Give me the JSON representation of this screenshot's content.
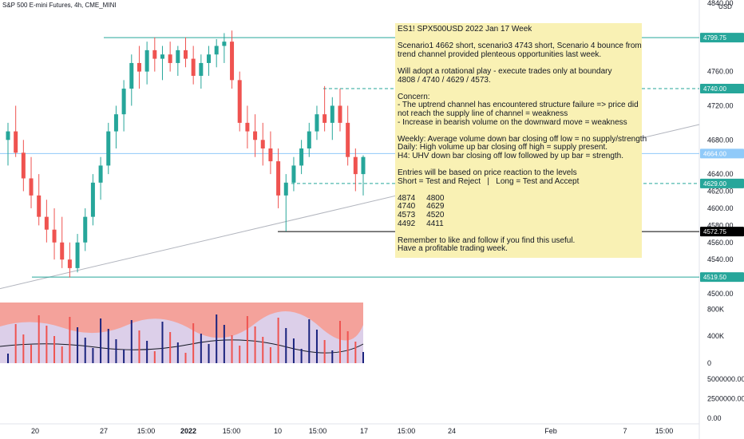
{
  "header": {
    "title": "S&P 500 E-mini Futures, 4h, CME_MINI"
  },
  "currency": "USD",
  "note": {
    "lines": [
      "ES1! SPX500USD 2022 Jan 17 Week",
      "",
      "Scenario1 4662 short, scenario3 4743 short, Scenario 4 bounce from",
      "trend channel provided plenteous opportunities last week.",
      "",
      "Will adopt a rotational play - execute trades only at boundary",
      "4808 / 4740 / 4629 / 4573.",
      "",
      "Concern:",
      "- The uptrend channel has encountered structure failure => price did",
      "not reach the supply line of channel = weakness",
      "- Increase in bearish volume on the downward move = weakness",
      "",
      "Weekly: Average volume down bar closing off low = no supply/strength",
      "Daily: High volume up bar closing off high = supply present.",
      "H4: UHV down bar closing off low followed by up bar = strength.",
      "",
      "Entries will be based on price reaction to the levels",
      "Short = Test and Reject   |   Long = Test and Accept",
      "",
      "4874     4800",
      "4740     4629",
      "4573     4520",
      "4492     4411",
      "",
      "Remember to like and follow if you find this useful.",
      "Have a profitable trading week."
    ]
  },
  "chart_data": {
    "type": "candlestick",
    "title": "S&P 500 E-mini Futures, 4h, CME_MINI",
    "price_axis": {
      "min": 4500,
      "max": 4840,
      "ticks": [
        4840,
        4760,
        4720,
        4680,
        4640,
        4620,
        4600,
        4580,
        4560,
        4540,
        4500
      ]
    },
    "price_tick_labels": [
      "4840.00",
      "4760.00",
      "4720.00",
      "4680.00",
      "4640.00",
      "4620.00",
      "4600.00",
      "4580.00",
      "4560.00",
      "4540.00",
      "4500.00"
    ],
    "levels": [
      {
        "value": 4799.75,
        "label": "4799.75",
        "style": "solid",
        "color": "#26a69a"
      },
      {
        "value": 4740.0,
        "label": "4740.00",
        "style": "dashed",
        "color": "#26a69a"
      },
      {
        "value": 4664.0,
        "label": "4664.00",
        "style": "solid",
        "color": "#90caf9"
      },
      {
        "value": 4629.0,
        "label": "4629.00",
        "style": "dashed",
        "color": "#26a69a"
      },
      {
        "value": 4572.75,
        "label": "4572.75",
        "style": "solid",
        "color": "#000000"
      },
      {
        "value": 4519.5,
        "label": "4519.50",
        "style": "solid",
        "color": "#26a69a"
      }
    ],
    "candles": [
      [
        4680,
        4700,
        4650,
        4690
      ],
      [
        4690,
        4720,
        4660,
        4665
      ],
      [
        4665,
        4680,
        4620,
        4635
      ],
      [
        4635,
        4660,
        4600,
        4615
      ],
      [
        4615,
        4640,
        4580,
        4590
      ],
      [
        4590,
        4610,
        4560,
        4575
      ],
      [
        4575,
        4600,
        4540,
        4560
      ],
      [
        4560,
        4590,
        4530,
        4540
      ],
      [
        4540,
        4560,
        4519,
        4530
      ],
      [
        4530,
        4570,
        4525,
        4560
      ],
      [
        4560,
        4600,
        4550,
        4590
      ],
      [
        4590,
        4640,
        4580,
        4630
      ],
      [
        4630,
        4660,
        4610,
        4650
      ],
      [
        4650,
        4700,
        4640,
        4690
      ],
      [
        4690,
        4720,
        4670,
        4710
      ],
      [
        4710,
        4750,
        4690,
        4740
      ],
      [
        4740,
        4780,
        4720,
        4770
      ],
      [
        4770,
        4790,
        4740,
        4760
      ],
      [
        4760,
        4795,
        4745,
        4785
      ],
      [
        4785,
        4800,
        4760,
        4775
      ],
      [
        4775,
        4790,
        4750,
        4780
      ],
      [
        4780,
        4795,
        4760,
        4770
      ],
      [
        4770,
        4790,
        4755,
        4785
      ],
      [
        4785,
        4800,
        4765,
        4775
      ],
      [
        4775,
        4790,
        4745,
        4755
      ],
      [
        4755,
        4780,
        4740,
        4770
      ],
      [
        4770,
        4790,
        4755,
        4780
      ],
      [
        4780,
        4798,
        4765,
        4790
      ],
      [
        4790,
        4805,
        4770,
        4795
      ],
      [
        4795,
        4808,
        4740,
        4750
      ],
      [
        4750,
        4760,
        4690,
        4700
      ],
      [
        4700,
        4720,
        4670,
        4690
      ],
      [
        4690,
        4710,
        4660,
        4680
      ],
      [
        4680,
        4700,
        4650,
        4670
      ],
      [
        4670,
        4690,
        4640,
        4655
      ],
      [
        4655,
        4670,
        4600,
        4615
      ],
      [
        4615,
        4640,
        4573,
        4630
      ],
      [
        4630,
        4660,
        4620,
        4650
      ],
      [
        4650,
        4680,
        4640,
        4670
      ],
      [
        4670,
        4700,
        4660,
        4690
      ],
      [
        4690,
        4720,
        4680,
        4710
      ],
      [
        4710,
        4743,
        4690,
        4700
      ],
      [
        4700,
        4730,
        4680,
        4720
      ],
      [
        4720,
        4740,
        4690,
        4700
      ],
      [
        4700,
        4720,
        4650,
        4660
      ],
      [
        4660,
        4670,
        4620,
        4640
      ],
      [
        4640,
        4662,
        4615,
        4660
      ]
    ],
    "volume_axis": {
      "ticks": [
        800000,
        400000,
        0
      ],
      "labels": [
        "800K",
        "400K",
        "0"
      ]
    },
    "indicator_axis": {
      "ticks": [
        5000000,
        2500000,
        0
      ],
      "labels": [
        "5000000.00",
        "2500000.00",
        "0.00"
      ]
    },
    "time_axis_labels": [
      "20",
      "27",
      "15:00",
      "2022",
      "15:00",
      "10",
      "15:00",
      "17",
      "15:00",
      "24",
      "Feb",
      "7",
      "15:00"
    ]
  },
  "colors": {
    "up": "#26a69a",
    "down": "#ef5350",
    "level": "#26a69a",
    "trend": "#b2b5be",
    "note_bg": "#f9f1b4",
    "vol_bg": "#f4a29b"
  }
}
